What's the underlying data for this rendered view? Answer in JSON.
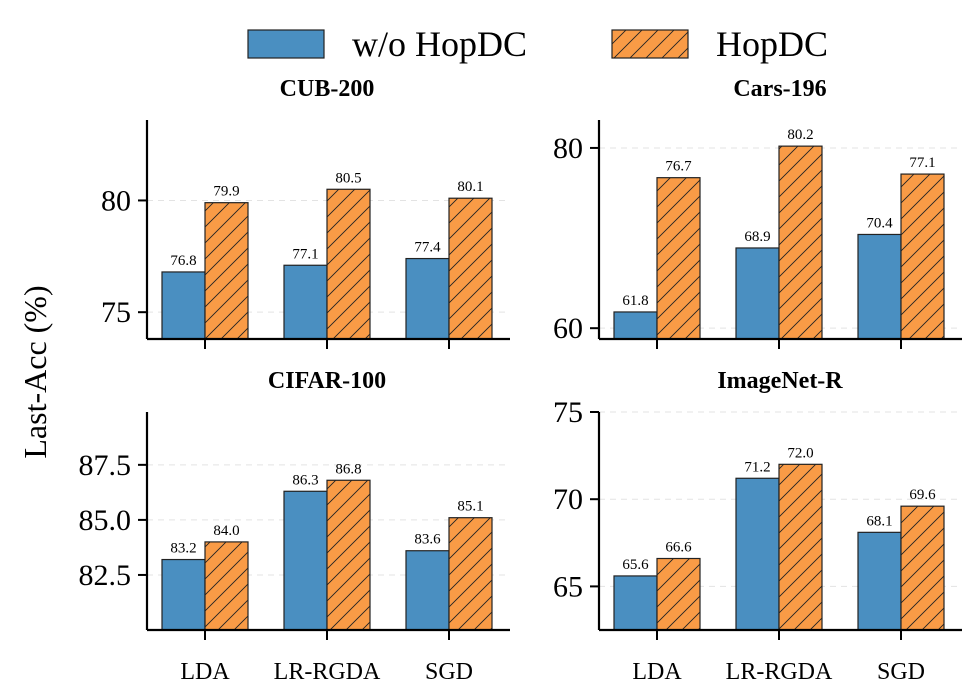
{
  "chart_data": {
    "type": "bar",
    "ylabel": "Last-Acc (%)",
    "legend": {
      "placement": "top-center",
      "entries": [
        {
          "name": "w/o HopDC",
          "color": "#4a8fc1",
          "hatch": false
        },
        {
          "name": "HopDC",
          "color": "#f99b46",
          "hatch": true
        }
      ]
    },
    "categories": [
      "LDA",
      "LR-RGDA",
      "SGD"
    ],
    "panels": [
      {
        "title": "CUB-200",
        "ylim": [
          73.8,
          83.6
        ],
        "yticks": [
          75,
          80
        ],
        "ytick_labels": [
          "75",
          "80"
        ],
        "show_xlabels": false,
        "series": [
          {
            "name": "w/o HopDC",
            "values": [
              76.8,
              77.1,
              77.4
            ],
            "labels": [
              "76.8",
              "77.1",
              "77.4"
            ]
          },
          {
            "name": "HopDC",
            "values": [
              79.9,
              80.5,
              80.1
            ],
            "labels": [
              "79.9",
              "80.5",
              "80.1"
            ]
          }
        ]
      },
      {
        "title": "Cars-196",
        "ylim": [
          58.8,
          83.1
        ],
        "yticks": [
          60,
          80
        ],
        "ytick_labels": [
          "60",
          "80"
        ],
        "show_xlabels": false,
        "series": [
          {
            "name": "w/o HopDC",
            "values": [
              61.8,
              68.9,
              70.4
            ],
            "labels": [
              "61.8",
              "68.9",
              "70.4"
            ]
          },
          {
            "name": "HopDC",
            "values": [
              76.7,
              80.2,
              77.1
            ],
            "labels": [
              "76.7",
              "80.2",
              "77.1"
            ]
          }
        ]
      },
      {
        "title": "CIFAR-100",
        "ylim": [
          80.0,
          89.9
        ],
        "yticks": [
          82.5,
          85.0,
          87.5
        ],
        "ytick_labels": [
          "82.5",
          "85.0",
          "87.5"
        ],
        "show_xlabels": true,
        "series": [
          {
            "name": "w/o HopDC",
            "values": [
              83.2,
              86.3,
              83.6
            ],
            "labels": [
              "83.2",
              "86.3",
              "83.6"
            ]
          },
          {
            "name": "HopDC",
            "values": [
              84.0,
              86.8,
              85.1
            ],
            "labels": [
              "84.0",
              "86.8",
              "85.1"
            ]
          }
        ]
      },
      {
        "title": "ImageNet-R",
        "ylim": [
          62.5,
          75.0
        ],
        "yticks": [
          65,
          70,
          75
        ],
        "ytick_labels": [
          "65",
          "70",
          "75"
        ],
        "show_xlabels": true,
        "series": [
          {
            "name": "w/o HopDC",
            "values": [
              65.6,
              71.2,
              68.1
            ],
            "labels": [
              "65.6",
              "71.2",
              "68.1"
            ]
          },
          {
            "name": "HopDC",
            "values": [
              66.6,
              72.0,
              69.6
            ],
            "labels": [
              "66.6",
              "72.0",
              "69.6"
            ]
          }
        ]
      }
    ]
  }
}
